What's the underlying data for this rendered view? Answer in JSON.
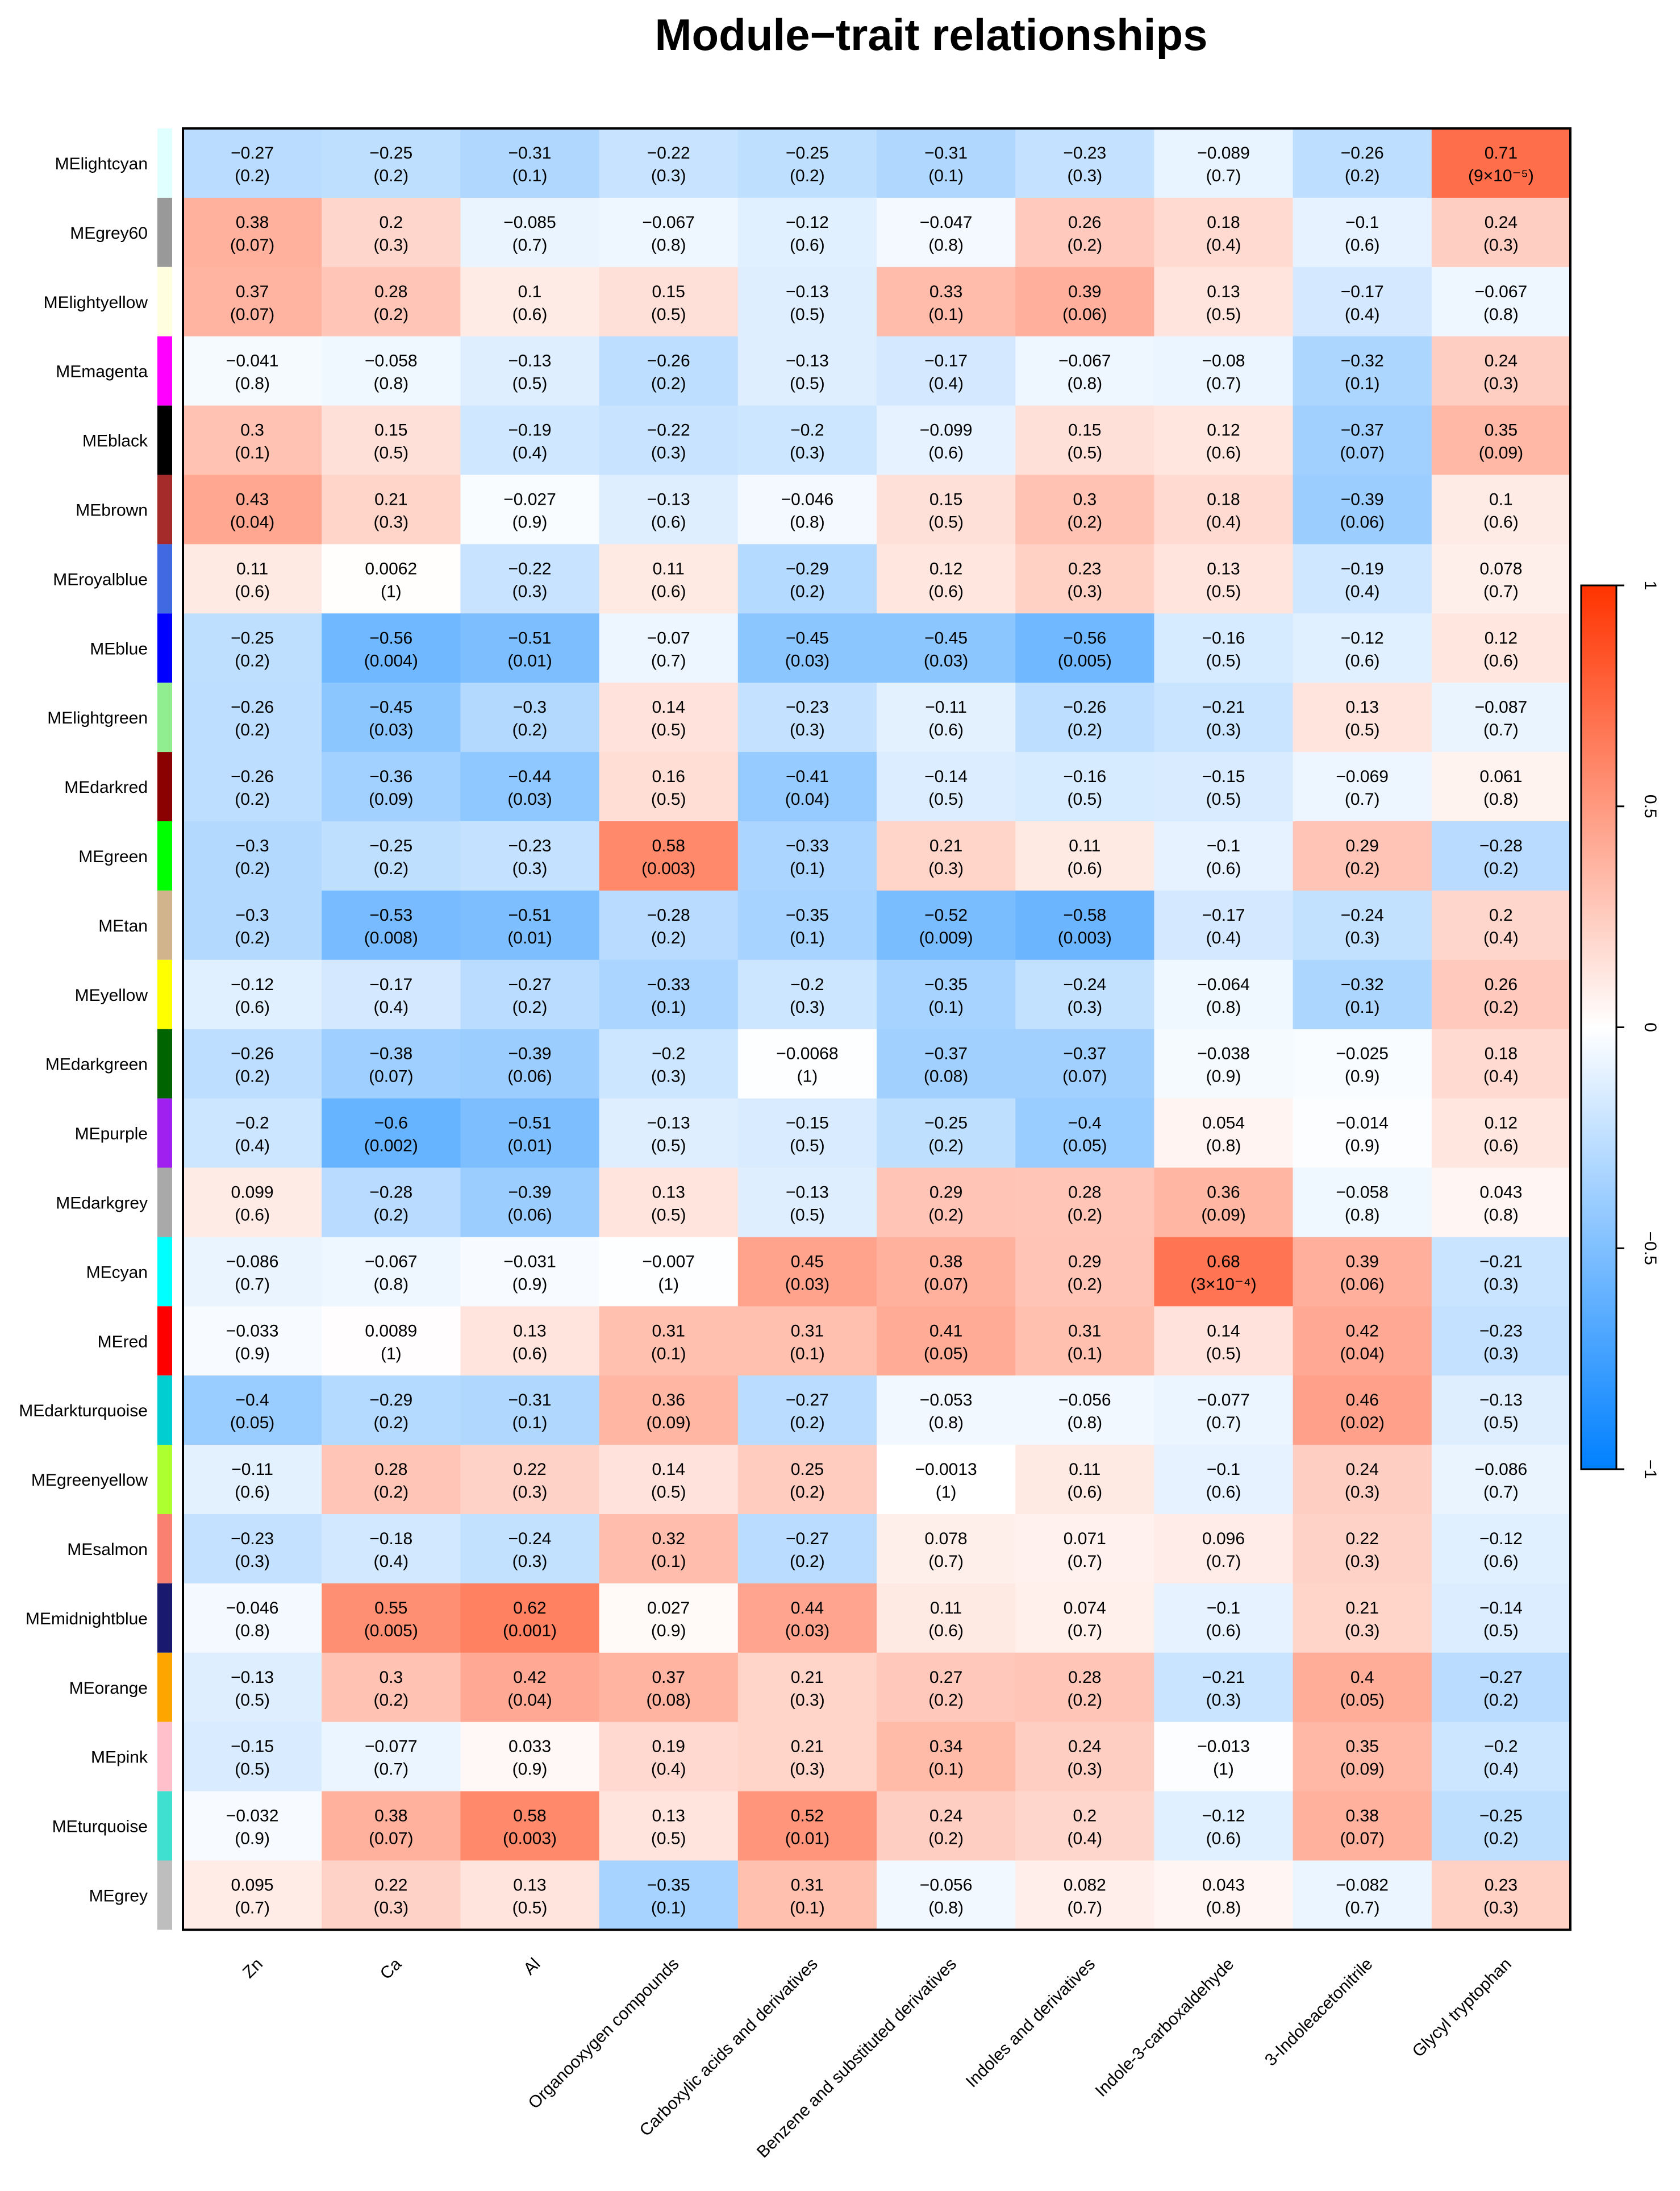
{
  "chart_data": {
    "type": "heatmap",
    "title": "Module−trait relationships",
    "rows": [
      "MElightcyan",
      "MEgrey60",
      "MElightyellow",
      "MEmagenta",
      "MEblack",
      "MEbrown",
      "MEroyalblue",
      "MEblue",
      "MElightgreen",
      "MEdarkred",
      "MEgreen",
      "MEtan",
      "MEyellow",
      "MEdarkgreen",
      "MEpurple",
      "MEdarkgrey",
      "MEcyan",
      "MEred",
      "MEdarkturquoise",
      "MEgreenyellow",
      "MEsalmon",
      "MEmidnightblue",
      "MEorange",
      "MEpink",
      "MEturquoise",
      "MEgrey"
    ],
    "row_colors": [
      "#e0ffff",
      "#999999",
      "#ffffe0",
      "#ff00ff",
      "#000000",
      "#a52a2a",
      "#4169e1",
      "#0000ff",
      "#90ee90",
      "#8b0000",
      "#00ff00",
      "#d2b48c",
      "#ffff00",
      "#006400",
      "#a020f0",
      "#a9a9a9",
      "#00ffff",
      "#ff0000",
      "#00ced1",
      "#adff2f",
      "#fa8072",
      "#191970",
      "#ffa500",
      "#ffc0cb",
      "#40e0d0",
      "#bebebe"
    ],
    "columns": [
      "Zn",
      "Ca",
      "Al",
      "Organooxygen compounds",
      "Carboxylic acids and derivatives",
      "Benzene and substituted derivatives",
      "Indoles and derivatives",
      "Indole-3-carboxaldehyde",
      "3-Indoleacetonitrile",
      "Glycyl tryptophan"
    ],
    "values": [
      [
        -0.27,
        -0.25,
        -0.31,
        -0.22,
        -0.25,
        -0.31,
        -0.23,
        -0.089,
        -0.26,
        0.71
      ],
      [
        0.38,
        0.2,
        -0.085,
        -0.067,
        -0.12,
        -0.047,
        0.26,
        0.18,
        -0.1,
        0.24
      ],
      [
        0.37,
        0.28,
        0.1,
        0.15,
        -0.13,
        0.33,
        0.39,
        0.13,
        -0.17,
        -0.067
      ],
      [
        -0.041,
        -0.058,
        -0.13,
        -0.26,
        -0.13,
        -0.17,
        -0.067,
        -0.08,
        -0.32,
        0.24
      ],
      [
        0.3,
        0.15,
        -0.19,
        -0.22,
        -0.2,
        -0.099,
        0.15,
        0.12,
        -0.37,
        0.35
      ],
      [
        0.43,
        0.21,
        -0.027,
        -0.13,
        -0.046,
        0.15,
        0.3,
        0.18,
        -0.39,
        0.1
      ],
      [
        0.11,
        0.0062,
        -0.22,
        0.11,
        -0.29,
        0.12,
        0.23,
        0.13,
        -0.19,
        0.078
      ],
      [
        -0.25,
        -0.56,
        -0.51,
        -0.07,
        -0.45,
        -0.45,
        -0.56,
        -0.16,
        -0.12,
        0.12
      ],
      [
        -0.26,
        -0.45,
        -0.3,
        0.14,
        -0.23,
        -0.11,
        -0.26,
        -0.21,
        0.13,
        -0.087
      ],
      [
        -0.26,
        -0.36,
        -0.44,
        0.16,
        -0.41,
        -0.14,
        -0.16,
        -0.15,
        -0.069,
        0.061
      ],
      [
        -0.3,
        -0.25,
        -0.23,
        0.58,
        -0.33,
        0.21,
        0.11,
        -0.1,
        0.29,
        -0.28
      ],
      [
        -0.3,
        -0.53,
        -0.51,
        -0.28,
        -0.35,
        -0.52,
        -0.58,
        -0.17,
        -0.24,
        0.2
      ],
      [
        -0.12,
        -0.17,
        -0.27,
        -0.33,
        -0.2,
        -0.35,
        -0.24,
        -0.064,
        -0.32,
        0.26
      ],
      [
        -0.26,
        -0.38,
        -0.39,
        -0.2,
        -0.0068,
        -0.37,
        -0.37,
        -0.038,
        -0.025,
        0.18
      ],
      [
        -0.2,
        -0.6,
        -0.51,
        -0.13,
        -0.15,
        -0.25,
        -0.4,
        0.054,
        -0.014,
        0.12
      ],
      [
        0.099,
        -0.28,
        -0.39,
        0.13,
        -0.13,
        0.29,
        0.28,
        0.36,
        -0.058,
        0.043
      ],
      [
        -0.086,
        -0.067,
        -0.031,
        -0.007,
        0.45,
        0.38,
        0.29,
        0.68,
        0.39,
        -0.21
      ],
      [
        -0.033,
        0.0089,
        0.13,
        0.31,
        0.31,
        0.41,
        0.31,
        0.14,
        0.42,
        -0.23
      ],
      [
        -0.4,
        -0.29,
        -0.31,
        0.36,
        -0.27,
        -0.053,
        -0.056,
        -0.077,
        0.46,
        -0.13
      ],
      [
        -0.11,
        0.28,
        0.22,
        0.14,
        0.25,
        -0.0013,
        0.11,
        -0.1,
        0.24,
        -0.086
      ],
      [
        -0.23,
        -0.18,
        -0.24,
        0.32,
        -0.27,
        0.078,
        0.071,
        0.096,
        0.22,
        -0.12
      ],
      [
        -0.046,
        0.55,
        0.62,
        0.027,
        0.44,
        0.11,
        0.074,
        -0.1,
        0.21,
        -0.14
      ],
      [
        -0.13,
        0.3,
        0.42,
        0.37,
        0.21,
        0.27,
        0.28,
        -0.21,
        0.4,
        -0.27
      ],
      [
        -0.15,
        -0.077,
        0.033,
        0.19,
        0.21,
        0.34,
        0.24,
        -0.013,
        0.35,
        -0.2
      ],
      [
        -0.032,
        0.38,
        0.58,
        0.13,
        0.52,
        0.24,
        0.2,
        -0.12,
        0.38,
        -0.25
      ],
      [
        0.095,
        0.22,
        0.13,
        -0.35,
        0.31,
        -0.056,
        0.082,
        0.043,
        -0.082,
        0.23
      ]
    ],
    "pvalues": [
      [
        "(0.2)",
        "(0.2)",
        "(0.1)",
        "(0.3)",
        "(0.2)",
        "(0.1)",
        "(0.3)",
        "(0.7)",
        "(0.2)",
        "(9×10⁻⁵)"
      ],
      [
        "(0.07)",
        "(0.3)",
        "(0.7)",
        "(0.8)",
        "(0.6)",
        "(0.8)",
        "(0.2)",
        "(0.4)",
        "(0.6)",
        "(0.3)"
      ],
      [
        "(0.07)",
        "(0.2)",
        "(0.6)",
        "(0.5)",
        "(0.5)",
        "(0.1)",
        "(0.06)",
        "(0.5)",
        "(0.4)",
        "(0.8)"
      ],
      [
        "(0.8)",
        "(0.8)",
        "(0.5)",
        "(0.2)",
        "(0.5)",
        "(0.4)",
        "(0.8)",
        "(0.7)",
        "(0.1)",
        "(0.3)"
      ],
      [
        "(0.1)",
        "(0.5)",
        "(0.4)",
        "(0.3)",
        "(0.3)",
        "(0.6)",
        "(0.5)",
        "(0.6)",
        "(0.07)",
        "(0.09)"
      ],
      [
        "(0.04)",
        "(0.3)",
        "(0.9)",
        "(0.6)",
        "(0.8)",
        "(0.5)",
        "(0.2)",
        "(0.4)",
        "(0.06)",
        "(0.6)"
      ],
      [
        "(0.6)",
        "(1)",
        "(0.3)",
        "(0.6)",
        "(0.2)",
        "(0.6)",
        "(0.3)",
        "(0.5)",
        "(0.4)",
        "(0.7)"
      ],
      [
        "(0.2)",
        "(0.004)",
        "(0.01)",
        "(0.7)",
        "(0.03)",
        "(0.03)",
        "(0.005)",
        "(0.5)",
        "(0.6)",
        "(0.6)"
      ],
      [
        "(0.2)",
        "(0.03)",
        "(0.2)",
        "(0.5)",
        "(0.3)",
        "(0.6)",
        "(0.2)",
        "(0.3)",
        "(0.5)",
        "(0.7)"
      ],
      [
        "(0.2)",
        "(0.09)",
        "(0.03)",
        "(0.5)",
        "(0.04)",
        "(0.5)",
        "(0.5)",
        "(0.5)",
        "(0.7)",
        "(0.8)"
      ],
      [
        "(0.2)",
        "(0.2)",
        "(0.3)",
        "(0.003)",
        "(0.1)",
        "(0.3)",
        "(0.6)",
        "(0.6)",
        "(0.2)",
        "(0.2)"
      ],
      [
        "(0.2)",
        "(0.008)",
        "(0.01)",
        "(0.2)",
        "(0.1)",
        "(0.009)",
        "(0.003)",
        "(0.4)",
        "(0.3)",
        "(0.4)"
      ],
      [
        "(0.6)",
        "(0.4)",
        "(0.2)",
        "(0.1)",
        "(0.3)",
        "(0.1)",
        "(0.3)",
        "(0.8)",
        "(0.1)",
        "(0.2)"
      ],
      [
        "(0.2)",
        "(0.07)",
        "(0.06)",
        "(0.3)",
        "(1)",
        "(0.08)",
        "(0.07)",
        "(0.9)",
        "(0.9)",
        "(0.4)"
      ],
      [
        "(0.4)",
        "(0.002)",
        "(0.01)",
        "(0.5)",
        "(0.5)",
        "(0.2)",
        "(0.05)",
        "(0.8)",
        "(0.9)",
        "(0.6)"
      ],
      [
        "(0.6)",
        "(0.2)",
        "(0.06)",
        "(0.5)",
        "(0.5)",
        "(0.2)",
        "(0.2)",
        "(0.09)",
        "(0.8)",
        "(0.8)"
      ],
      [
        "(0.7)",
        "(0.8)",
        "(0.9)",
        "(1)",
        "(0.03)",
        "(0.07)",
        "(0.2)",
        "(3×10⁻⁴)",
        "(0.06)",
        "(0.3)"
      ],
      [
        "(0.9)",
        "(1)",
        "(0.6)",
        "(0.1)",
        "(0.1)",
        "(0.05)",
        "(0.1)",
        "(0.5)",
        "(0.04)",
        "(0.3)"
      ],
      [
        "(0.05)",
        "(0.2)",
        "(0.1)",
        "(0.09)",
        "(0.2)",
        "(0.8)",
        "(0.8)",
        "(0.7)",
        "(0.02)",
        "(0.5)"
      ],
      [
        "(0.6)",
        "(0.2)",
        "(0.3)",
        "(0.5)",
        "(0.2)",
        "(1)",
        "(0.6)",
        "(0.6)",
        "(0.3)",
        "(0.7)"
      ],
      [
        "(0.3)",
        "(0.4)",
        "(0.3)",
        "(0.1)",
        "(0.2)",
        "(0.7)",
        "(0.7)",
        "(0.7)",
        "(0.3)",
        "(0.6)"
      ],
      [
        "(0.8)",
        "(0.005)",
        "(0.001)",
        "(0.9)",
        "(0.03)",
        "(0.6)",
        "(0.7)",
        "(0.6)",
        "(0.3)",
        "(0.5)"
      ],
      [
        "(0.5)",
        "(0.2)",
        "(0.04)",
        "(0.08)",
        "(0.3)",
        "(0.2)",
        "(0.2)",
        "(0.3)",
        "(0.05)",
        "(0.2)"
      ],
      [
        "(0.5)",
        "(0.7)",
        "(0.9)",
        "(0.4)",
        "(0.3)",
        "(0.1)",
        "(0.3)",
        "(1)",
        "(0.09)",
        "(0.4)"
      ],
      [
        "(0.9)",
        "(0.07)",
        "(0.003)",
        "(0.5)",
        "(0.01)",
        "(0.2)",
        "(0.4)",
        "(0.6)",
        "(0.07)",
        "(0.2)"
      ],
      [
        "(0.7)",
        "(0.3)",
        "(0.5)",
        "(0.1)",
        "(0.1)",
        "(0.8)",
        "(0.7)",
        "(0.8)",
        "(0.7)",
        "(0.3)"
      ]
    ],
    "colorbar": {
      "min": -1,
      "max": 1,
      "ticks": [
        1,
        0.5,
        0,
        -0.5,
        -1
      ],
      "tick_labels": [
        "1",
        "0.5",
        "0",
        "−0.5",
        "−1"
      ],
      "low_color": "#0080ff",
      "mid_color": "#ffffff",
      "high_color": "#ff3300"
    }
  }
}
